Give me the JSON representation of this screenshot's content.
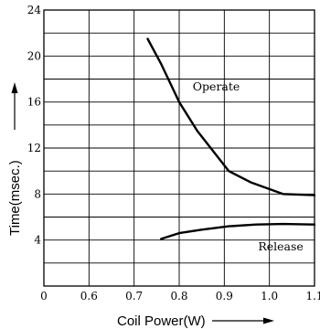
{
  "chart_data": {
    "type": "line",
    "xlabel": "Coil Power(W)",
    "ylabel": "Time(msec.)",
    "xlim": [
      0.5,
      1.1
    ],
    "ylim": [
      0,
      24
    ],
    "x_ticks": [
      "0",
      "0.6",
      "0.7",
      "0.8",
      "0.9",
      "1.0",
      "1.1"
    ],
    "y_ticks": [
      "4",
      "8",
      "12",
      "16",
      "20",
      "24"
    ],
    "grid": true,
    "colors": {
      "line": "#000000",
      "grid": "#000000"
    },
    "series": [
      {
        "name": "Operate",
        "x": [
          0.73,
          0.76,
          0.8,
          0.84,
          0.91,
          0.96,
          1.03,
          1.1
        ],
        "y": [
          21.5,
          19.3,
          16.0,
          13.5,
          10.0,
          9.0,
          8.0,
          7.9
        ]
      },
      {
        "name": "Release",
        "x": [
          0.76,
          0.8,
          0.85,
          0.91,
          0.97,
          1.03,
          1.1
        ],
        "y": [
          4.1,
          4.6,
          4.9,
          5.2,
          5.35,
          5.4,
          5.35
        ]
      }
    ]
  }
}
